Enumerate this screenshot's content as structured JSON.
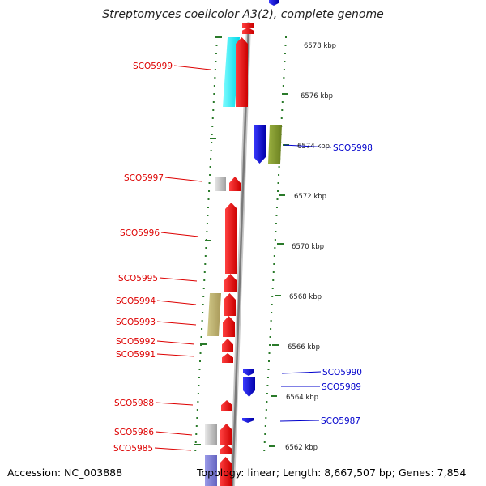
{
  "title": "Streptomyces coelicolor A3(2), complete genome",
  "accession": "Accession: NC_003888",
  "topology": "Topology: linear; Length: 8,667,507 bp; Genes: 7,854",
  "colors": {
    "left_label": "#dd0000",
    "right_label": "#0000cc",
    "ruler": "#2a7a2a",
    "scale_text": "#222222",
    "backbone": "#999999"
  },
  "scale_ticks": [
    "6578 kbp",
    "6576 kbp",
    "6574 kbp",
    "6572 kbp",
    "6570 kbp",
    "6568 kbp",
    "6566 kbp",
    "6564 kbp",
    "6562 kbp"
  ],
  "genes_left": [
    "SCO5999",
    "SCO5997",
    "SCO5996",
    "SCO5995",
    "SCO5994",
    "SCO5993",
    "SCO5992",
    "SCO5991",
    "SCO5988",
    "SCO5986",
    "SCO5985"
  ],
  "genes_right": [
    "SCO5998",
    "SCO5990",
    "SCO5989",
    "SCO5987"
  ]
}
